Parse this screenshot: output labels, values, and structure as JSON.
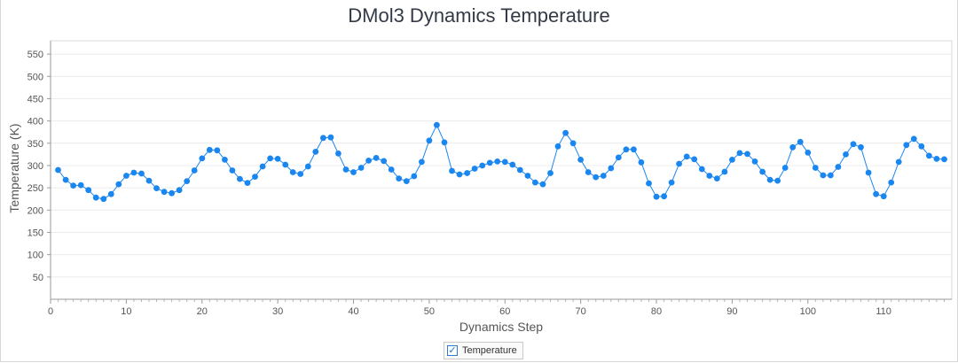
{
  "chart_data": {
    "type": "line",
    "title": "DMol3 Dynamics Temperature",
    "xlabel": "Dynamics Step",
    "ylabel": "Temperature (K)",
    "xlim": [
      0,
      119
    ],
    "ylim": [
      0,
      580
    ],
    "xticks": [
      0,
      10,
      20,
      30,
      40,
      50,
      60,
      70,
      80,
      90,
      100,
      110
    ],
    "yticks": [
      50,
      100,
      150,
      200,
      250,
      300,
      350,
      400,
      450,
      500,
      550
    ],
    "grid": true,
    "legend_position": "bottom-center",
    "series": [
      {
        "name": "Temperature",
        "color": "#1a86f0",
        "x": [
          1,
          2,
          3,
          4,
          5,
          6,
          7,
          8,
          9,
          10,
          11,
          12,
          13,
          14,
          15,
          16,
          17,
          18,
          19,
          20,
          21,
          22,
          23,
          24,
          25,
          26,
          27,
          28,
          29,
          30,
          31,
          32,
          33,
          34,
          35,
          36,
          37,
          38,
          39,
          40,
          41,
          42,
          43,
          44,
          45,
          46,
          47,
          48,
          49,
          50,
          51,
          52,
          53,
          54,
          55,
          56,
          57,
          58,
          59,
          60,
          61,
          62,
          63,
          64,
          65,
          66,
          67,
          68,
          69,
          70,
          71,
          72,
          73,
          74,
          75,
          76,
          77,
          78,
          79,
          80,
          81,
          82,
          83,
          84,
          85,
          86,
          87,
          88,
          89,
          90,
          91,
          92,
          93,
          94,
          95,
          96,
          97,
          98,
          99,
          100,
          101,
          102,
          103,
          104,
          105,
          106,
          107,
          108,
          109,
          110,
          111,
          112,
          113,
          114,
          115,
          116,
          117,
          118
        ],
        "y": [
          290,
          268,
          255,
          256,
          245,
          228,
          225,
          236,
          258,
          277,
          284,
          282,
          266,
          249,
          241,
          238,
          245,
          265,
          289,
          316,
          335,
          334,
          313,
          289,
          270,
          261,
          275,
          298,
          316,
          315,
          302,
          285,
          281,
          298,
          331,
          362,
          363,
          327,
          291,
          285,
          295,
          311,
          317,
          310,
          291,
          271,
          265,
          276,
          308,
          356,
          391,
          352,
          288,
          280,
          283,
          293,
          300,
          306,
          309,
          308,
          302,
          290,
          277,
          262,
          258,
          283,
          343,
          373,
          350,
          313,
          285,
          274,
          277,
          294,
          318,
          336,
          336,
          307,
          260,
          230,
          231,
          262,
          304,
          320,
          314,
          292,
          277,
          271,
          286,
          313,
          328,
          326,
          309,
          286,
          268,
          266,
          295,
          341,
          353,
          329,
          295,
          278,
          278,
          297,
          325,
          348,
          341,
          284,
          236,
          231,
          262,
          308,
          346,
          360,
          343,
          322,
          315,
          314
        ]
      }
    ]
  },
  "legend": {
    "label": "Temperature",
    "check": "✓"
  }
}
